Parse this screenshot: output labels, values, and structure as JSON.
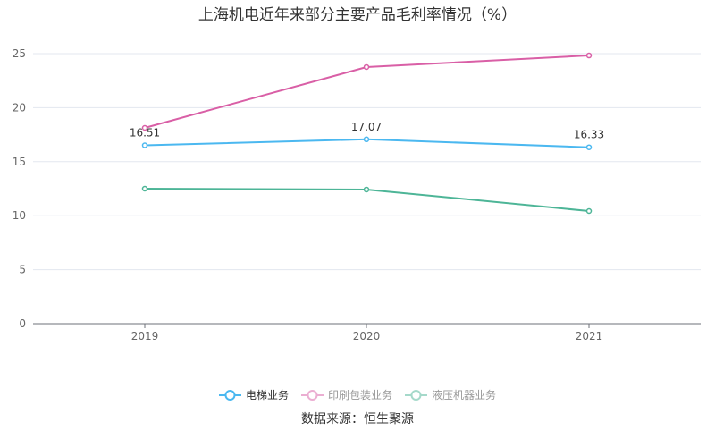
{
  "chart_data": {
    "type": "line",
    "title": "上海机电近年来部分主要产品毛利率情况（%）",
    "categories": [
      "2019",
      "2020",
      "2021"
    ],
    "ylim": [
      0,
      25
    ],
    "yticks": [
      0,
      5,
      10,
      15,
      20,
      25
    ],
    "grid": true,
    "legend_position": "bottom",
    "series": [
      {
        "name": "电梯业务",
        "values": [
          16.51,
          17.07,
          16.33
        ],
        "color": "#4bb8f0",
        "labels": [
          "16.51",
          "17.07",
          "16.33"
        ],
        "legend_active": true
      },
      {
        "name": "印刷包装业务",
        "values": [
          18.13,
          23.76,
          24.83
        ],
        "color": "#d95fa6",
        "legend_active": false
      },
      {
        "name": "液压机器业务",
        "values": [
          12.5,
          12.42,
          10.43
        ],
        "color": "#4db597",
        "legend_active": false
      }
    ]
  },
  "source": "数据来源：恒生聚源"
}
